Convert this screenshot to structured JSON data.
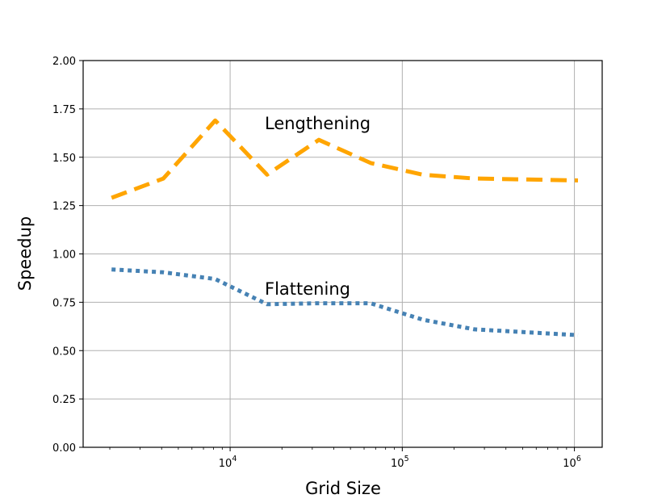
{
  "chart_data": {
    "type": "line",
    "title": "",
    "xlabel": "Grid Size",
    "ylabel": "Speedup",
    "xscale": "log",
    "xlim": [
      1400,
      1450000
    ],
    "ylim": [
      0,
      2.0
    ],
    "yticks": [
      0.0,
      0.25,
      0.5,
      0.75,
      1.0,
      1.25,
      1.5,
      1.75,
      2.0
    ],
    "ytick_labels": [
      "0.00",
      "0.25",
      "0.50",
      "0.75",
      "1.00",
      "1.25",
      "1.50",
      "1.75",
      "2.00"
    ],
    "xticks": [
      {
        "value": 10000,
        "base": "10",
        "exp": "4"
      },
      {
        "value": 100000,
        "base": "10",
        "exp": "5"
      },
      {
        "value": 1000000,
        "base": "10",
        "exp": "6"
      }
    ],
    "grid": true,
    "series": [
      {
        "name": "Lengthening",
        "color": "#FFA500",
        "style": "dashed",
        "x": [
          2048,
          4096,
          8192,
          16384,
          32768,
          65536,
          131072,
          262144,
          524288,
          1048576
        ],
        "y": [
          1.29,
          1.39,
          1.69,
          1.41,
          1.59,
          1.47,
          1.41,
          1.39,
          1.385,
          1.38
        ]
      },
      {
        "name": "Flattening",
        "color": "#4682B4",
        "style": "dotted",
        "x": [
          2048,
          4096,
          8192,
          16384,
          32768,
          65536,
          131072,
          262144,
          524288,
          1048576
        ],
        "y": [
          0.92,
          0.905,
          0.87,
          0.74,
          0.745,
          0.745,
          0.66,
          0.61,
          0.595,
          0.58
        ]
      }
    ],
    "annotations": [
      {
        "text": "Lengthening",
        "series": "Lengthening"
      },
      {
        "text": "Flattening",
        "series": "Flattening"
      }
    ]
  }
}
